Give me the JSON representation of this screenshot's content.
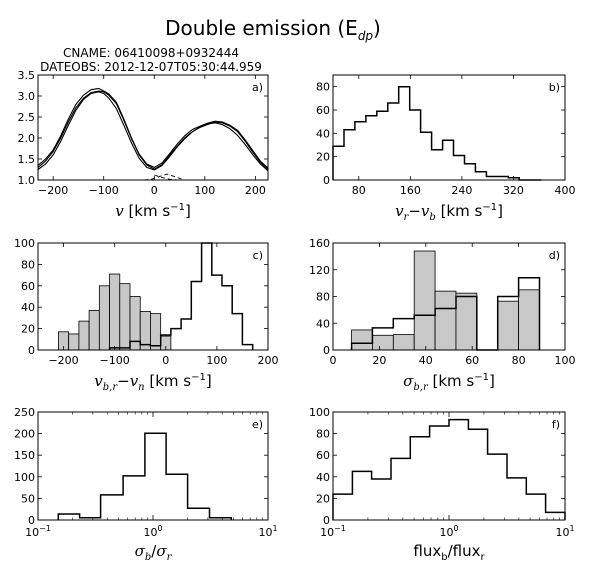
{
  "figure": {
    "title": "Double emission (E",
    "title_sub": "dp",
    "title_close": ")",
    "cname": "CNAME: 06410098+0932444",
    "dateobs": "DATEOBS: 2012-12-07T05:30:44.959"
  },
  "chart_data": [
    {
      "id": "a",
      "panel_label": "a)",
      "type": "line",
      "xlabel_math": "v",
      "xlabel_unit": " [km s",
      "xlabel_exp": "−1",
      "xlabel_close": "]",
      "xlim": [
        -230,
        225
      ],
      "ylim": [
        1.0,
        3.5
      ],
      "xticks": [
        -200,
        -100,
        0,
        100,
        200
      ],
      "xtick_labels": [
        "−200",
        "−100",
        "0",
        "100",
        "200"
      ],
      "yticks": [
        1.0,
        1.5,
        2.0,
        2.5,
        3.0,
        3.5
      ],
      "ytick_labels": [
        "1.0",
        "1.5",
        "2.0",
        "2.5",
        "3.0",
        "3.5"
      ],
      "series": [
        {
          "style": "observed",
          "x": [
            -230,
            -215,
            -200,
            -185,
            -170,
            -155,
            -140,
            -125,
            -110,
            -100,
            -90,
            -75,
            -60,
            -45,
            -30,
            -15,
            0,
            15,
            30,
            45,
            60,
            75,
            90,
            105,
            120,
            135,
            150,
            165,
            180,
            195,
            210,
            225
          ],
          "y": [
            1.35,
            1.5,
            1.72,
            2.05,
            2.45,
            2.8,
            3.02,
            3.15,
            3.18,
            3.12,
            3.05,
            2.85,
            2.45,
            2.0,
            1.62,
            1.38,
            1.3,
            1.4,
            1.62,
            1.85,
            2.05,
            2.2,
            2.28,
            2.35,
            2.4,
            2.38,
            2.3,
            2.18,
            1.95,
            1.7,
            1.45,
            1.28
          ]
        },
        {
          "style": "observed",
          "x": [
            -230,
            -215,
            -200,
            -185,
            -170,
            -155,
            -140,
            -125,
            -110,
            -100,
            -90,
            -75,
            -60,
            -45,
            -30,
            -15,
            0,
            15,
            30,
            45,
            60,
            75,
            90,
            105,
            120,
            135,
            150,
            165,
            180,
            195,
            210,
            225
          ],
          "y": [
            1.3,
            1.45,
            1.68,
            2.0,
            2.38,
            2.72,
            2.95,
            3.08,
            3.12,
            3.1,
            3.02,
            2.82,
            2.42,
            1.98,
            1.6,
            1.36,
            1.26,
            1.36,
            1.58,
            1.8,
            2.0,
            2.15,
            2.25,
            2.32,
            2.38,
            2.36,
            2.28,
            2.15,
            1.92,
            1.66,
            1.42,
            1.25
          ]
        },
        {
          "style": "fit",
          "x": [
            -230,
            -215,
            -200,
            -185,
            -170,
            -155,
            -140,
            -125,
            -110,
            -100,
            -90,
            -75,
            -60,
            -45,
            -30,
            -15,
            0,
            15,
            30,
            45,
            60,
            75,
            90,
            105,
            120,
            135,
            150,
            165,
            180,
            195,
            210,
            225
          ],
          "y": [
            1.25,
            1.38,
            1.6,
            1.92,
            2.3,
            2.66,
            2.92,
            3.06,
            3.1,
            3.06,
            2.95,
            2.7,
            2.3,
            1.88,
            1.52,
            1.3,
            1.24,
            1.34,
            1.55,
            1.78,
            1.98,
            2.14,
            2.26,
            2.34,
            2.36,
            2.32,
            2.22,
            2.06,
            1.84,
            1.6,
            1.38,
            1.22
          ]
        },
        {
          "style": "component",
          "x": [
            -20,
            -5,
            10,
            25,
            40,
            55
          ],
          "y": [
            1.0,
            1.02,
            1.08,
            1.14,
            1.08,
            1.02
          ]
        },
        {
          "style": "component",
          "x": [
            0,
            15,
            30,
            45,
            60
          ],
          "y": [
            1.12,
            1.06,
            1.02,
            1.0,
            1.0
          ]
        }
      ]
    },
    {
      "id": "b",
      "panel_label": "b)",
      "type": "histogram",
      "xlabel_math": "v",
      "xlabel_sub1": "r",
      "xlabel_minus": "−",
      "xlabel_math2": "v",
      "xlabel_sub2": "b",
      "xlabel_unit": " [km s",
      "xlabel_exp": "−1",
      "xlabel_close": "]",
      "xlim": [
        40,
        400
      ],
      "ylim": [
        0,
        90
      ],
      "xticks": [
        80,
        160,
        240,
        320,
        400
      ],
      "xtick_labels": [
        "80",
        "160",
        "240",
        "320",
        "400"
      ],
      "yticks": [
        0,
        20,
        40,
        60,
        80
      ],
      "ytick_labels": [
        "0",
        "20",
        "40",
        "60",
        "80"
      ],
      "bin_edges": [
        40,
        57,
        74,
        91,
        108,
        125,
        142,
        159,
        176,
        193,
        210,
        227,
        244,
        261,
        278,
        295,
        312,
        329,
        346,
        363
      ],
      "series": [
        {
          "style": "step",
          "counts": [
            29,
            43,
            50,
            55,
            59,
            66,
            80,
            60,
            41,
            26,
            34,
            21,
            14,
            7,
            3,
            3,
            2,
            0,
            0
          ]
        }
      ]
    },
    {
      "id": "c",
      "panel_label": "c)",
      "type": "histogram",
      "xlabel_math": "v",
      "xlabel_sub1": "b,r",
      "xlabel_minus": "−",
      "xlabel_math2": "v",
      "xlabel_sub2": "n",
      "xlabel_unit": " [km s",
      "xlabel_exp": "−1",
      "xlabel_close": "]",
      "xlim": [
        -250,
        200
      ],
      "ylim": [
        0,
        100
      ],
      "xticks": [
        -200,
        -100,
        0,
        100,
        200
      ],
      "xtick_labels": [
        "−200",
        "−100",
        "0",
        "100",
        "200"
      ],
      "yticks": [
        0,
        20,
        40,
        60,
        80,
        100
      ],
      "ytick_labels": [
        "0",
        "20",
        "40",
        "60",
        "80",
        "100"
      ],
      "series": [
        {
          "style": "filled",
          "bin_edges": [
            -210,
            -190,
            -170,
            -150,
            -130,
            -110,
            -90,
            -70,
            -50,
            -30,
            -10,
            10
          ],
          "counts": [
            17,
            15,
            27,
            37,
            60,
            71,
            62,
            50,
            36,
            34,
            13,
            3
          ]
        },
        {
          "style": "step",
          "bin_edges": [
            -110,
            -90,
            -70,
            -50,
            -30,
            -10,
            10,
            30,
            50,
            70,
            90,
            110,
            130,
            150,
            170
          ],
          "counts": [
            2,
            2,
            8,
            5,
            4,
            14,
            20,
            29,
            64,
            100,
            70,
            60,
            34,
            5
          ]
        }
      ]
    },
    {
      "id": "d",
      "panel_label": "d)",
      "type": "histogram",
      "xlabel_math": "σ",
      "xlabel_sub1": "b,r",
      "xlabel_unit": " [km s",
      "xlabel_exp": "−1",
      "xlabel_close": "]",
      "xlim": [
        0,
        100
      ],
      "ylim": [
        0,
        160
      ],
      "xticks": [
        0,
        20,
        40,
        60,
        80,
        100
      ],
      "xtick_labels": [
        "0",
        "20",
        "40",
        "60",
        "80",
        "100"
      ],
      "yticks": [
        0,
        40,
        80,
        120,
        160
      ],
      "ytick_labels": [
        "0",
        "40",
        "80",
        "120",
        "160"
      ],
      "series": [
        {
          "style": "filled",
          "bin_edges": [
            8,
            17,
            26,
            35,
            44,
            53,
            62,
            71,
            80,
            89
          ],
          "counts": [
            30,
            22,
            23,
            148,
            88,
            85,
            0,
            73,
            90
          ]
        },
        {
          "style": "step",
          "bin_edges": [
            8,
            17,
            26,
            35,
            44,
            53,
            62,
            71,
            80,
            89
          ],
          "counts": [
            10,
            33,
            47,
            52,
            62,
            80,
            0,
            80,
            108
          ]
        }
      ]
    },
    {
      "id": "e",
      "panel_label": "e)",
      "type": "histogram",
      "log_x": true,
      "xlabel_math": "σ",
      "xlabel_sub1": "b",
      "xlabel_slash": "/",
      "xlabel_math2": "σ",
      "xlabel_sub2": "r",
      "xlim": [
        0.1,
        10
      ],
      "ylim": [
        0,
        250
      ],
      "xtick_base": "10",
      "xtick_exps": [
        "−1",
        "0",
        "1"
      ],
      "yticks": [
        0,
        50,
        100,
        150,
        200,
        250
      ],
      "ytick_labels": [
        "0",
        "50",
        "100",
        "150",
        "200",
        "250"
      ],
      "bin_edges": [
        0.15,
        0.23,
        0.35,
        0.55,
        0.85,
        1.3,
        2.0,
        3.1,
        4.8
      ],
      "series": [
        {
          "style": "step",
          "counts": [
            14,
            5,
            58,
            102,
            201,
            106,
            27,
            5
          ]
        }
      ]
    },
    {
      "id": "f",
      "panel_label": "f)",
      "type": "histogram",
      "log_x": true,
      "xlabel_text1": "flux",
      "xlabel_sub1": "b",
      "xlabel_slash": "/flux",
      "xlabel_sub2": "r",
      "xlim": [
        0.1,
        10
      ],
      "ylim": [
        0,
        100
      ],
      "xtick_base": "10",
      "xtick_exps": [
        "−1",
        "0",
        "1"
      ],
      "yticks": [
        0,
        20,
        40,
        60,
        80,
        100
      ],
      "ytick_labels": [
        "0",
        "20",
        "40",
        "60",
        "80",
        "100"
      ],
      "bin_edges": [
        0.1,
        0.147,
        0.215,
        0.316,
        0.464,
        0.681,
        1.0,
        1.47,
        2.15,
        3.16,
        4.64,
        6.81,
        10.0
      ],
      "series": [
        {
          "style": "step",
          "counts": [
            24,
            45,
            38,
            57,
            77,
            87,
            93,
            84,
            61,
            39,
            24,
            7
          ]
        }
      ]
    }
  ]
}
